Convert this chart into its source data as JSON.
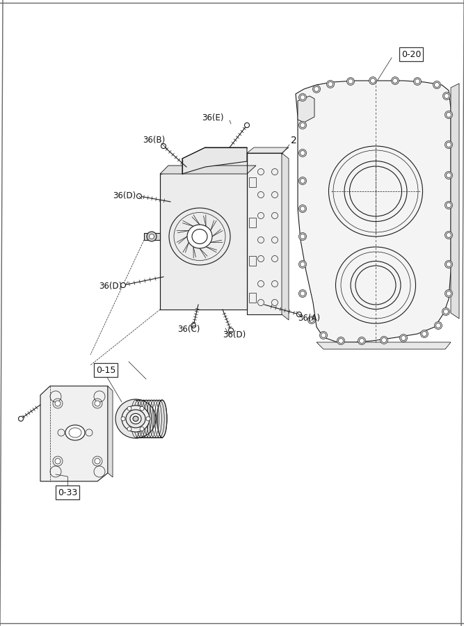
{
  "bg_color": "#ffffff",
  "lc": "#1a1a1a",
  "lw": 0.8,
  "tlw": 0.5,
  "fs": 8.5,
  "page_border": "#888888",
  "labels": {
    "ref_020": "0-20",
    "ref_015": "0-15",
    "ref_033": "0-33",
    "l2": "2",
    "l36E": "36(E)",
    "l36B": "36(B)",
    "l36D1": "36(D)",
    "l36D2": "36(D)",
    "l36C": "36(C)",
    "l36D3": "36(D)",
    "l36A": "36(A)"
  }
}
